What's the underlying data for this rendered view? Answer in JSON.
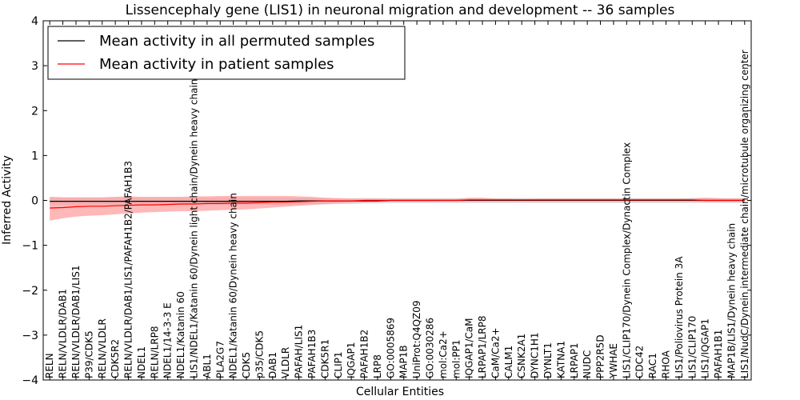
{
  "chart_data": {
    "type": "line",
    "title": "Lissencephaly gene (LIS1) in neuronal migration and development -- 36 samples",
    "xlabel": "Cellular Entities",
    "ylabel": "Inferred Activity",
    "ylim": [
      -4,
      4
    ],
    "yticks": [
      -4,
      -3,
      -2,
      -1,
      0,
      1,
      2,
      3,
      4
    ],
    "ytick_labels": [
      "−4",
      "−3",
      "−2",
      "−1",
      "0",
      "1",
      "2",
      "3",
      "4"
    ],
    "grid": false,
    "legend_position": "top-left",
    "categories": [
      "RELN",
      "RELN/VLDLR/DAB1",
      "RELN/VLDLR/DAB1/LIS1",
      "P39/CDK5",
      "RELN/VLDLR",
      "CDK5R2",
      "RELN/VLDLR/DAB1/LIS1/PAFAH1B2/PAFAH1B3",
      "NDEL1",
      "RELN/LRP8",
      "NDEL1/14-3-3 E",
      "NDEL1/Katanin 60",
      "LIS1/NDEL1/Katanin 60/Dynein light chain/Dynein heavy chain",
      "ABL1",
      "PLA2G7",
      "NDEL1/Katanin 60/Dynein heavy chain",
      "CDK5",
      "p35/CDK5",
      "DAB1",
      "VLDLR",
      "PAFAH/LIS1",
      "PAFAH1B3",
      "CDK5R1",
      "CLIP1",
      "IQGAP1",
      "PAFAH1B2",
      "LRP8",
      "GO:0005869",
      "MAP1B",
      "UniProt:Q4QZ09",
      "GO:0030286",
      "mol:Ca2+",
      "mol:PP1",
      "IQGAP1/CaM",
      "LRPAP1/LRP8",
      "CaM/Ca2+",
      "CALM1",
      "CSNK2A1",
      "DYNC1H1",
      "DYNLT1",
      "KATNA1",
      "LRPAP1",
      "NUDC",
      "PPP2R5D",
      "YWHAE",
      "LIS1/CLIP170/Dynein Complex/Dynactin Complex",
      "CDC42",
      "RAC1",
      "RHOA",
      "LIS1/Poliovirus Protein 3A",
      "LIS1/CLIP170",
      "LIS1/IQGAP1",
      "PAFAH1B1",
      "MAP1B/LIS1/Dynein heavy chain",
      "LIS1/NudC/Dynein intermediate chain/microtubule organizing center"
    ],
    "series": [
      {
        "name": "Mean activity in all permuted samples",
        "color": "#000000",
        "band_color": "#c0c0c0",
        "values": [
          -0.02,
          -0.02,
          -0.02,
          -0.02,
          -0.02,
          -0.02,
          -0.02,
          -0.02,
          -0.02,
          -0.02,
          -0.02,
          -0.02,
          -0.02,
          -0.02,
          -0.02,
          -0.02,
          -0.02,
          -0.02,
          -0.02,
          -0.01,
          -0.01,
          -0.01,
          -0.01,
          -0.01,
          -0.01,
          -0.01,
          0,
          0,
          0,
          0,
          0,
          0,
          0,
          0,
          0,
          0,
          0,
          0,
          0,
          0,
          0,
          0,
          0,
          0,
          0,
          0,
          0,
          0,
          0,
          0,
          0,
          0,
          0,
          0
        ],
        "band_lower": [
          -0.1,
          -0.1,
          -0.1,
          -0.1,
          -0.1,
          -0.1,
          -0.1,
          -0.1,
          -0.1,
          -0.1,
          -0.1,
          -0.1,
          -0.1,
          -0.1,
          -0.1,
          -0.1,
          -0.1,
          -0.1,
          -0.1,
          -0.09,
          -0.09,
          -0.09,
          -0.08,
          -0.08,
          -0.07,
          -0.07,
          -0.06,
          -0.06,
          -0.06,
          -0.06,
          -0.06,
          -0.06,
          -0.06,
          -0.06,
          -0.06,
          -0.06,
          -0.06,
          -0.06,
          -0.06,
          -0.06,
          -0.06,
          -0.06,
          -0.06,
          -0.06,
          -0.06,
          -0.06,
          -0.06,
          -0.06,
          -0.06,
          -0.06,
          -0.06,
          -0.06,
          -0.06,
          -0.06
        ],
        "band_upper": [
          0.06,
          0.06,
          0.06,
          0.06,
          0.06,
          0.06,
          0.06,
          0.06,
          0.06,
          0.06,
          0.06,
          0.06,
          0.06,
          0.06,
          0.06,
          0.06,
          0.06,
          0.06,
          0.06,
          0.06,
          0.06,
          0.05,
          0.05,
          0.05,
          0.05,
          0.05,
          0.05,
          0.05,
          0.05,
          0.05,
          0.05,
          0.05,
          0.05,
          0.05,
          0.05,
          0.05,
          0.05,
          0.05,
          0.05,
          0.05,
          0.05,
          0.05,
          0.05,
          0.05,
          0.05,
          0.05,
          0.05,
          0.05,
          0.05,
          0.05,
          0.05,
          0.05,
          0.05,
          0.05
        ]
      },
      {
        "name": "Mean activity in patient samples",
        "color": "#ff0000",
        "band_color": "#ff9a9a",
        "values": [
          -0.17,
          -0.16,
          -0.14,
          -0.13,
          -0.13,
          -0.12,
          -0.11,
          -0.1,
          -0.1,
          -0.09,
          -0.08,
          -0.08,
          -0.07,
          -0.07,
          -0.06,
          -0.06,
          -0.05,
          -0.04,
          -0.04,
          -0.03,
          -0.02,
          -0.01,
          -0.01,
          -0.01,
          0,
          0,
          0,
          0,
          0,
          0,
          0,
          0,
          0.01,
          0.01,
          0.01,
          0.01,
          0.01,
          0.01,
          0.01,
          0.01,
          0.01,
          0.01,
          0.01,
          0.01,
          0.01,
          0.01,
          0.01,
          0.01,
          0.01,
          0.01,
          0,
          0,
          0,
          0
        ],
        "band_lower": [
          -0.45,
          -0.4,
          -0.36,
          -0.34,
          -0.33,
          -0.31,
          -0.29,
          -0.27,
          -0.26,
          -0.25,
          -0.24,
          -0.24,
          -0.23,
          -0.22,
          -0.21,
          -0.2,
          -0.18,
          -0.16,
          -0.14,
          -0.12,
          -0.1,
          -0.08,
          -0.06,
          -0.05,
          -0.04,
          -0.03,
          -0.02,
          -0.02,
          -0.02,
          -0.02,
          -0.01,
          -0.01,
          -0.01,
          -0.01,
          -0.01,
          -0.01,
          -0.01,
          -0.01,
          -0.01,
          -0.01,
          -0.01,
          -0.01,
          -0.01,
          -0.01,
          -0.01,
          -0.01,
          -0.01,
          -0.01,
          -0.01,
          -0.01,
          -0.02,
          -0.02,
          -0.02,
          -0.02
        ],
        "band_upper": [
          0.08,
          0.07,
          0.07,
          0.07,
          0.07,
          0.08,
          0.09,
          0.08,
          0.08,
          0.08,
          0.08,
          0.09,
          0.09,
          0.1,
          0.1,
          0.1,
          0.1,
          0.1,
          0.1,
          0.09,
          0.08,
          0.06,
          0.05,
          0.04,
          0.04,
          0.04,
          0.03,
          0.03,
          0.03,
          0.03,
          0.03,
          0.03,
          0.06,
          0.06,
          0.04,
          0.04,
          0.03,
          0.04,
          0.04,
          0.04,
          0.04,
          0.04,
          0.04,
          0.04,
          0.04,
          0.04,
          0.04,
          0.04,
          0.04,
          0.05,
          0.06,
          0.05,
          0.04,
          0.04
        ]
      }
    ]
  }
}
